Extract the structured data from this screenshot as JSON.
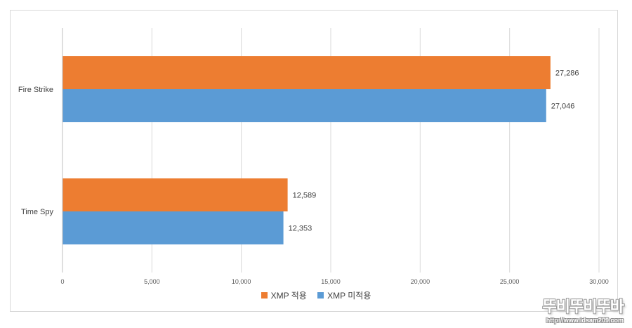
{
  "chart_data": {
    "type": "bar",
    "orientation": "horizontal",
    "categories": [
      "Fire Strike",
      "Time Spy"
    ],
    "series": [
      {
        "name": "XMP 적용",
        "color": "#ed7d31",
        "values": [
          27286,
          12589
        ],
        "labels": [
          "27,286",
          "12,589"
        ]
      },
      {
        "name": "XMP 미적용",
        "color": "#5b9bd5",
        "values": [
          27046,
          12353
        ],
        "labels": [
          "27,046",
          "12,353"
        ]
      }
    ],
    "xlim": [
      0,
      30000
    ],
    "xticks": [
      0,
      5000,
      10000,
      15000,
      20000,
      25000,
      30000
    ],
    "xtick_labels": [
      "0",
      "5,000",
      "10,000",
      "15,000",
      "20,000",
      "25,000",
      "30,000"
    ],
    "grid": true,
    "legend_position": "bottom",
    "title": "",
    "xlabel": "",
    "ylabel": ""
  },
  "watermark": {
    "text": "뚜비뚜비뚜바",
    "url": "http://www.idsam209.com"
  }
}
